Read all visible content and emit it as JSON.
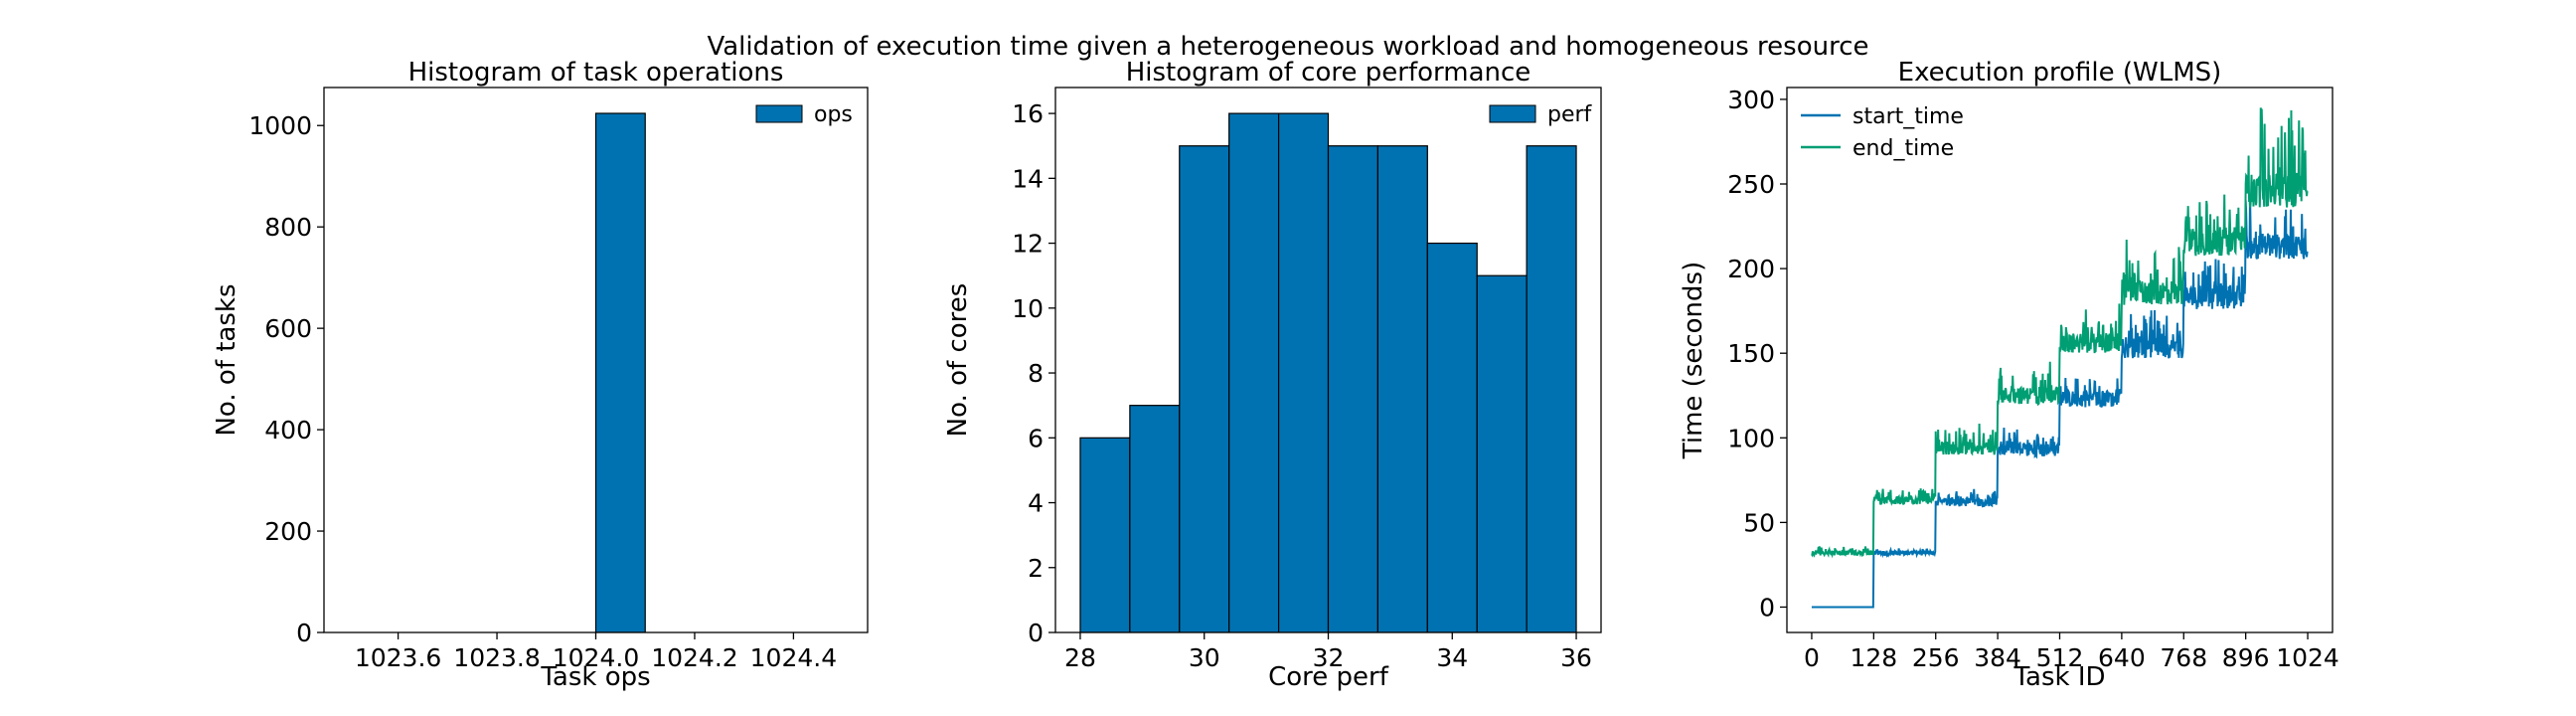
{
  "figure": {
    "title": "Validation of execution time given a heterogeneous workload and homogeneous resource"
  },
  "chart_data": [
    {
      "type": "bar",
      "title": "Histogram of task operations",
      "xlabel": "Task ops",
      "ylabel": "No. of tasks",
      "xlim": [
        1023.45,
        1024.55
      ],
      "ylim": [
        0,
        1075
      ],
      "xticks": [
        1023.6,
        1023.8,
        1024.0,
        1024.2,
        1024.4
      ],
      "xtick_labels": [
        "1023.6",
        "1023.8",
        "1024.0",
        "1024.2",
        "1024.4"
      ],
      "yticks": [
        0,
        200,
        400,
        600,
        800,
        1000
      ],
      "ytick_labels": [
        "0",
        "200",
        "400",
        "600",
        "800",
        "1000"
      ],
      "bins": [
        [
          1024.0,
          1024.1
        ]
      ],
      "values": [
        1024
      ],
      "series": [
        {
          "name": "ops",
          "color": "#0072b2"
        }
      ],
      "legend": "top-right",
      "grid": false
    },
    {
      "type": "bar",
      "title": "Histogram of core performance",
      "xlabel": "Core perf",
      "ylabel": "No. of cores",
      "xlim": [
        27.6,
        36.4
      ],
      "ylim": [
        0,
        16.8
      ],
      "xticks": [
        28,
        30,
        32,
        34,
        36
      ],
      "xtick_labels": [
        "28",
        "30",
        "32",
        "34",
        "36"
      ],
      "yticks": [
        0,
        2,
        4,
        6,
        8,
        10,
        12,
        14,
        16
      ],
      "ytick_labels": [
        "0",
        "2",
        "4",
        "6",
        "8",
        "10",
        "12",
        "14",
        "16"
      ],
      "bins": [
        [
          28.0,
          28.8
        ],
        [
          28.8,
          29.6
        ],
        [
          29.6,
          30.4
        ],
        [
          30.4,
          31.2
        ],
        [
          31.2,
          32.0
        ],
        [
          32.0,
          32.8
        ],
        [
          32.8,
          33.6
        ],
        [
          33.6,
          34.4
        ],
        [
          34.4,
          35.2
        ],
        [
          35.2,
          36.0
        ]
      ],
      "values": [
        6,
        7,
        15,
        16,
        16,
        15,
        15,
        12,
        11,
        15
      ],
      "series": [
        {
          "name": "perf",
          "color": "#0072b2"
        }
      ],
      "legend": "top-right",
      "grid": false
    },
    {
      "type": "line",
      "title": "Execution profile (WLMS)",
      "xlabel": "Task ID",
      "ylabel": "Time (seconds)",
      "xlim": [
        -51.2,
        1075.2
      ],
      "ylim": [
        -15,
        307
      ],
      "xticks": [
        0,
        128,
        256,
        384,
        512,
        640,
        768,
        896,
        1024
      ],
      "xtick_labels": [
        "0",
        "128",
        "256",
        "384",
        "512",
        "640",
        "768",
        "896",
        "1024"
      ],
      "yticks": [
        0,
        50,
        100,
        150,
        200,
        250,
        300
      ],
      "ytick_labels": [
        "0",
        "50",
        "100",
        "150",
        "200",
        "250",
        "300"
      ],
      "legend": "top-left",
      "grid": false,
      "n_tasks": 1024,
      "series": [
        {
          "name": "start_time",
          "color": "#0072b2",
          "segments": [
            {
              "x_from": 0,
              "x_to": 127,
              "base": 0,
              "noise": 0,
              "spike_max": 0
            },
            {
              "x_from": 128,
              "x_to": 255,
              "base": 32,
              "noise": 3,
              "spike_max": 2
            },
            {
              "x_from": 256,
              "x_to": 383,
              "base": 62,
              "noise": 5,
              "spike_max": 6
            },
            {
              "x_from": 384,
              "x_to": 511,
              "base": 93,
              "noise": 8,
              "spike_max": 10
            },
            {
              "x_from": 512,
              "x_to": 639,
              "base": 123,
              "noise": 10,
              "spike_max": 14
            },
            {
              "x_from": 640,
              "x_to": 767,
              "base": 153,
              "noise": 12,
              "spike_max": 20
            },
            {
              "x_from": 768,
              "x_to": 895,
              "base": 183,
              "noise": 14,
              "spike_max": 23
            },
            {
              "x_from": 896,
              "x_to": 1023,
              "base": 213,
              "noise": 15,
              "spike_max": 25
            }
          ]
        },
        {
          "name": "end_time",
          "color": "#009e73",
          "segments": [
            {
              "x_from": 0,
              "x_to": 127,
              "base": 32,
              "noise": 3,
              "spike_max": 3
            },
            {
              "x_from": 128,
              "x_to": 255,
              "base": 63,
              "noise": 5,
              "spike_max": 6
            },
            {
              "x_from": 256,
              "x_to": 383,
              "base": 94,
              "noise": 8,
              "spike_max": 12
            },
            {
              "x_from": 384,
              "x_to": 511,
              "base": 125,
              "noise": 10,
              "spike_max": 18
            },
            {
              "x_from": 512,
              "x_to": 639,
              "base": 156,
              "noise": 12,
              "spike_max": 18
            },
            {
              "x_from": 640,
              "x_to": 767,
              "base": 186,
              "noise": 15,
              "spike_max": 24
            },
            {
              "x_from": 768,
              "x_to": 895,
              "base": 216,
              "noise": 17,
              "spike_max": 28
            },
            {
              "x_from": 896,
              "x_to": 1023,
              "base": 246,
              "noise": 20,
              "spike_max": 45
            }
          ]
        }
      ]
    }
  ]
}
